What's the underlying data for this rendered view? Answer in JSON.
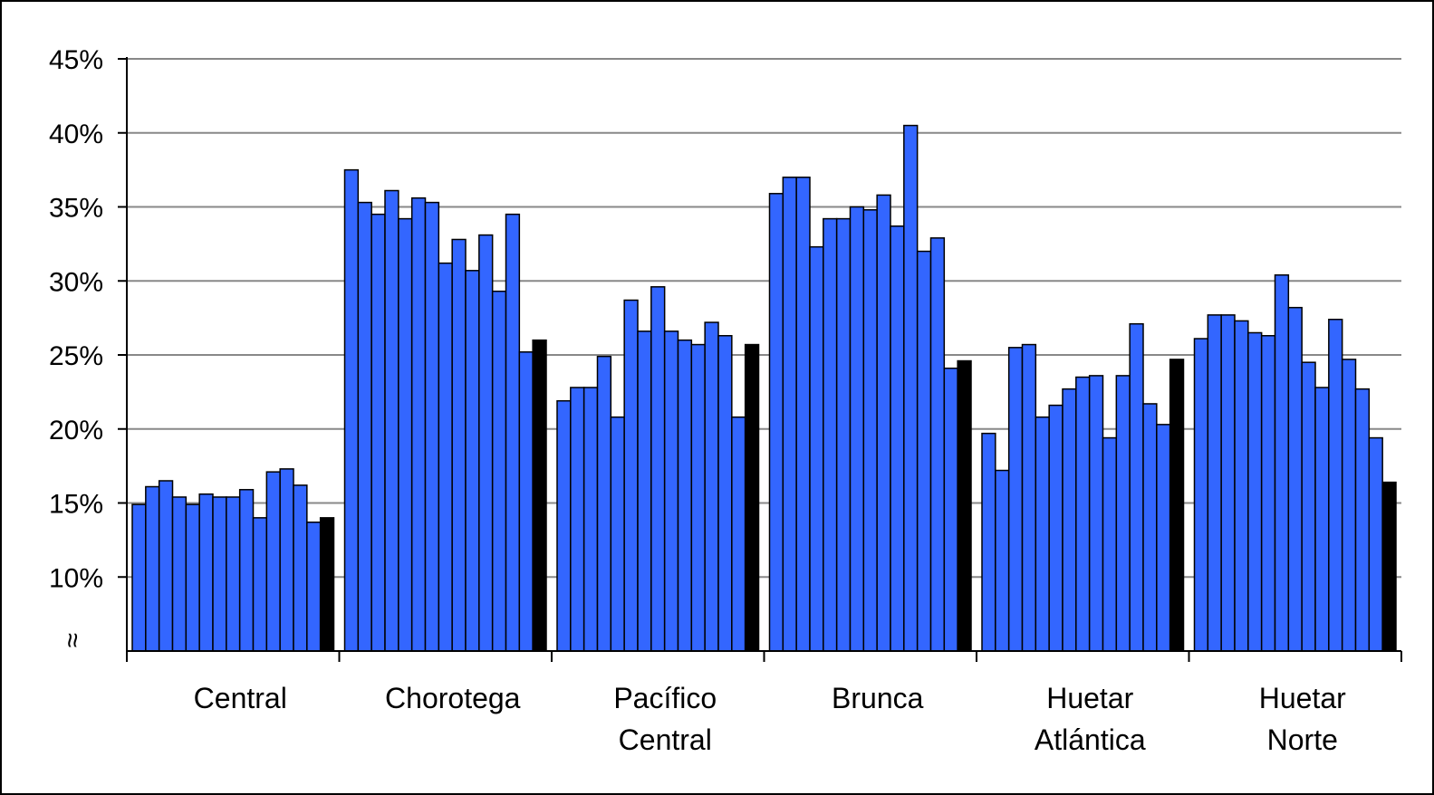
{
  "chart_data": {
    "type": "bar",
    "y_axis": {
      "ylim": [
        5,
        45
      ],
      "ticks": [
        "10%",
        "15%",
        "20%",
        "25%",
        "30%",
        "35%",
        "40%",
        "45%"
      ],
      "tick_values": [
        10,
        15,
        20,
        25,
        30,
        35,
        40,
        45
      ],
      "axis_break_symbol": "≈",
      "grid": true
    },
    "colors": {
      "bar": "#3366ff",
      "highlight": "#000000",
      "grid": "#888888",
      "border": "#000000"
    },
    "categories": [
      {
        "lines": [
          "Central"
        ],
        "values": [
          14.9,
          16.1,
          16.5,
          15.4,
          14.9,
          15.6,
          15.4,
          15.4,
          15.9,
          14.0,
          17.1,
          17.3,
          16.2,
          13.7
        ],
        "highlight": 14.0
      },
      {
        "lines": [
          "Chorotega"
        ],
        "values": [
          37.5,
          35.3,
          34.5,
          36.1,
          34.2,
          35.6,
          35.3,
          31.2,
          32.8,
          30.7,
          33.1,
          29.3,
          34.5,
          25.2
        ],
        "highlight": 26.0
      },
      {
        "lines": [
          "Pacífico",
          "Central"
        ],
        "values": [
          21.9,
          22.8,
          22.8,
          24.9,
          20.8,
          28.7,
          26.6,
          29.6,
          26.6,
          26.0,
          25.7,
          27.2,
          26.3,
          20.8
        ],
        "highlight": 25.7
      },
      {
        "lines": [
          "Brunca"
        ],
        "values": [
          35.9,
          37.0,
          37.0,
          32.3,
          34.2,
          34.2,
          35.0,
          34.8,
          35.8,
          33.7,
          40.5,
          32.0,
          32.9,
          24.1
        ],
        "highlight": 24.6
      },
      {
        "lines": [
          "Huetar",
          "Atlántica"
        ],
        "values": [
          19.7,
          17.2,
          25.5,
          25.7,
          20.8,
          21.6,
          22.7,
          23.5,
          23.6,
          19.4,
          23.6,
          27.1,
          21.7,
          20.3
        ],
        "highlight": 24.7
      },
      {
        "lines": [
          "Huetar",
          "Norte"
        ],
        "values": [
          26.1,
          27.7,
          27.7,
          27.3,
          26.5,
          26.3,
          30.4,
          28.2,
          24.5,
          22.8,
          27.4,
          24.7,
          22.7,
          19.4
        ],
        "highlight": 16.4
      }
    ]
  }
}
